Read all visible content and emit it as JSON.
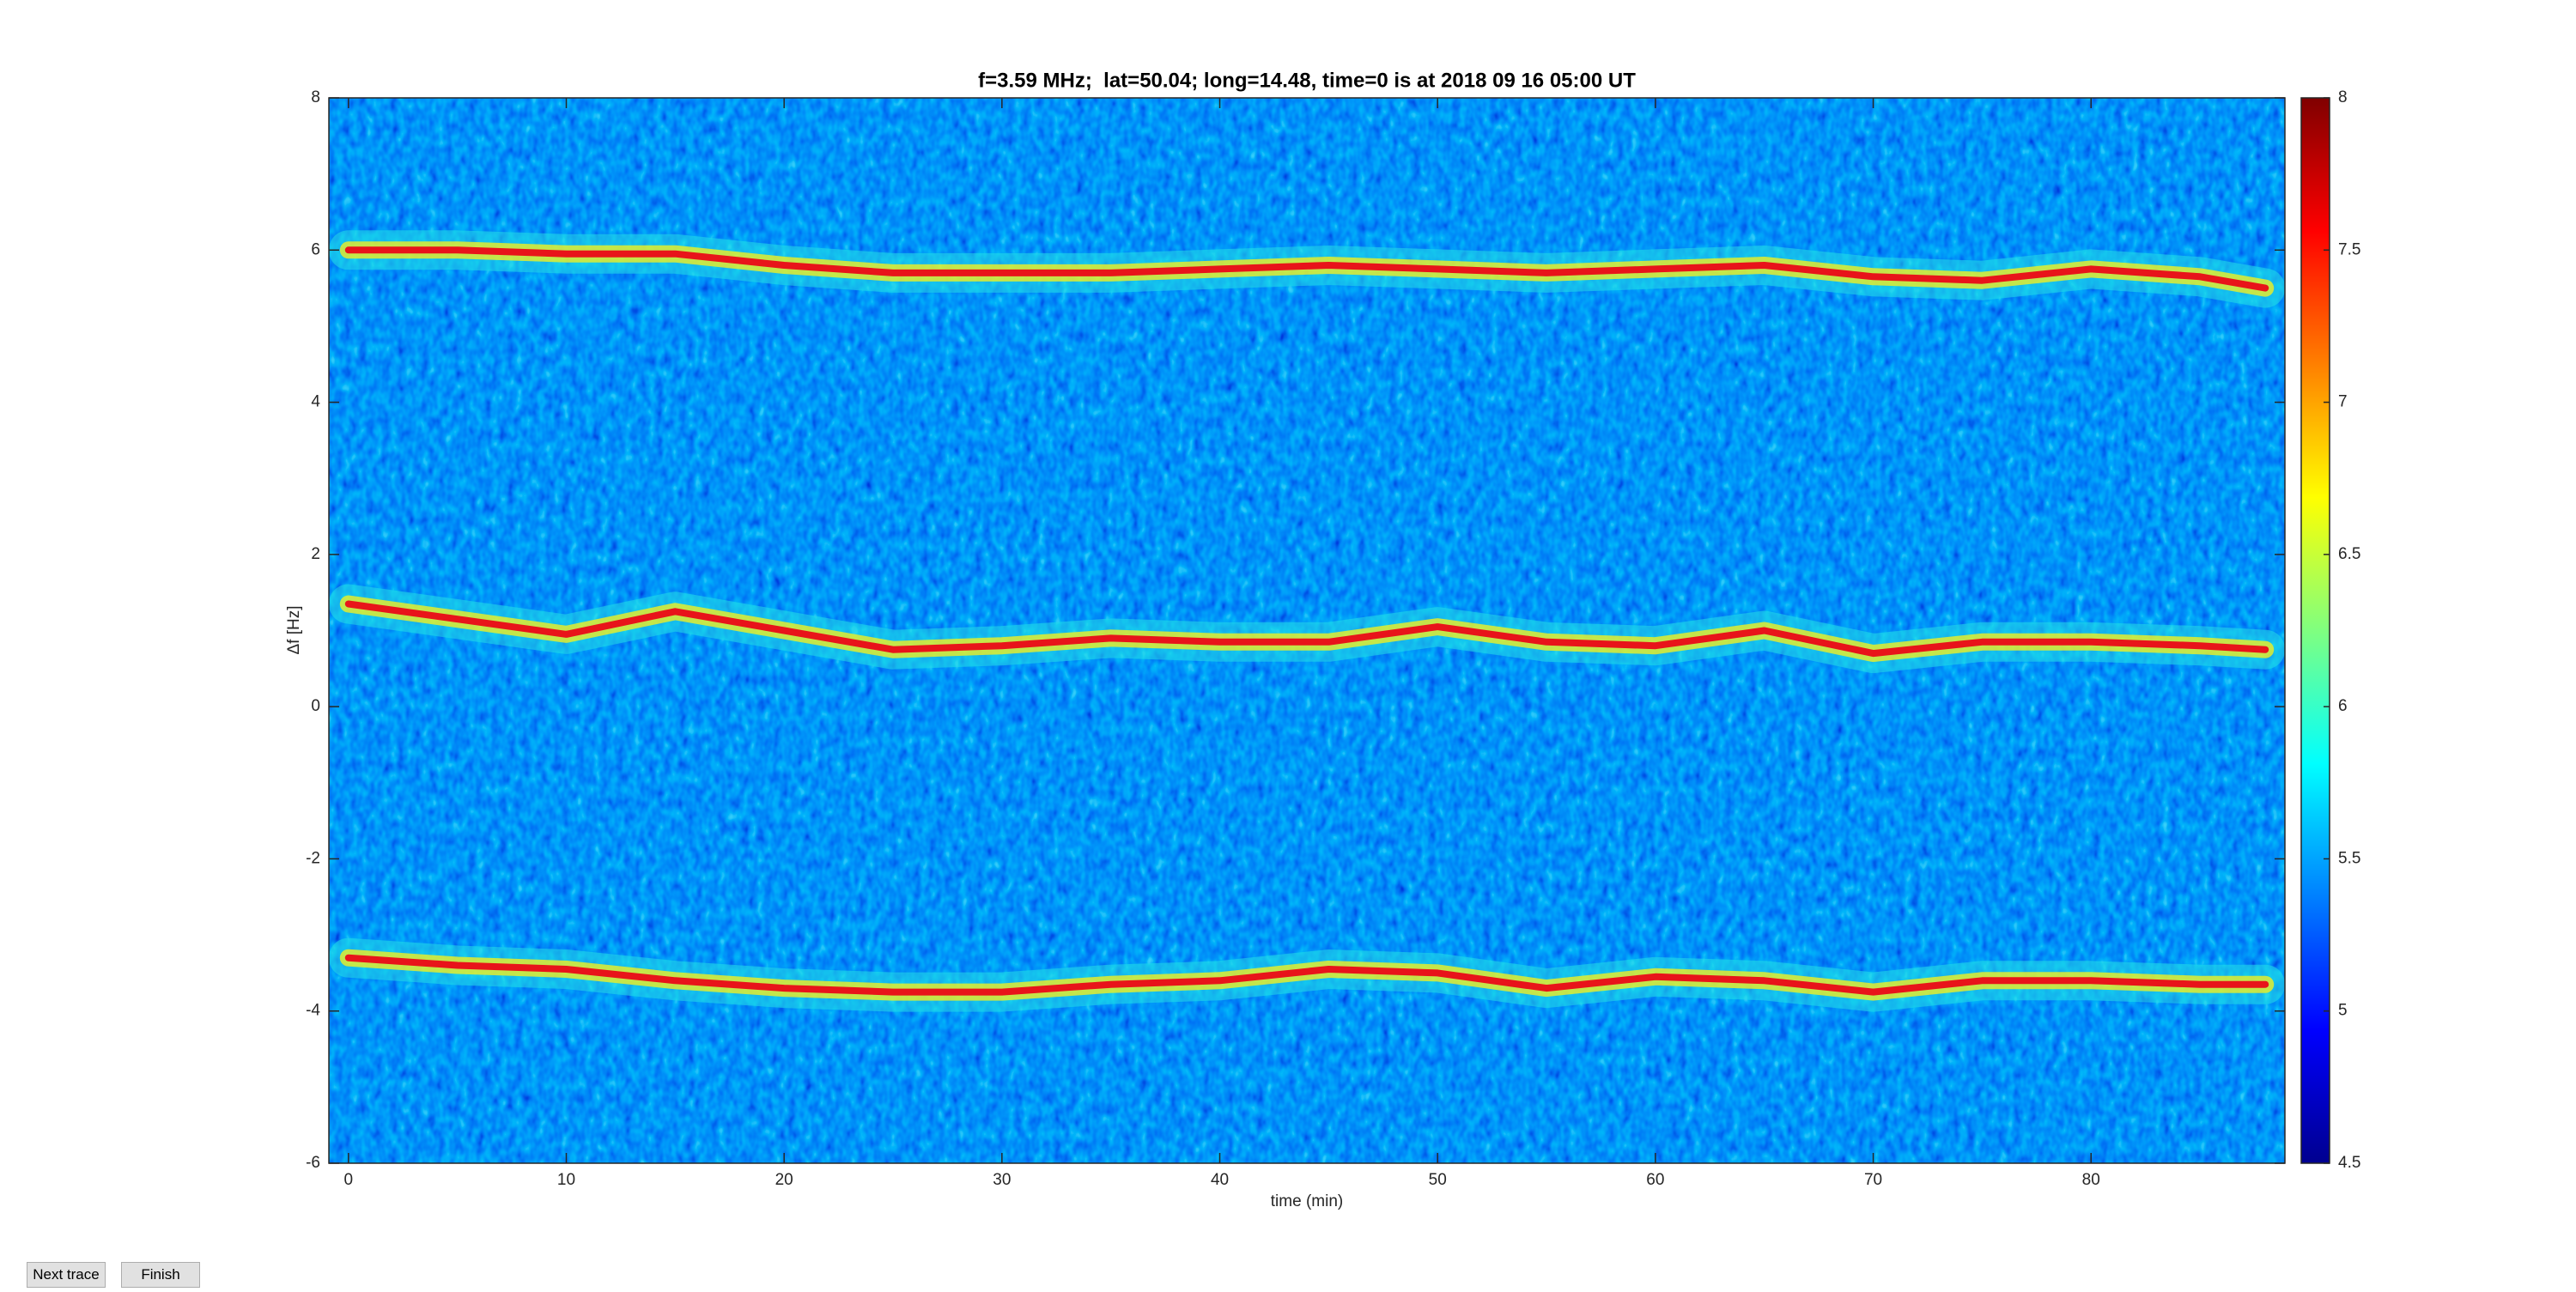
{
  "chart_data": {
    "type": "spectrogram",
    "title": "f=3.59 MHz;  lat=50.04; long=14.48, time=0 is at 2018 09 16 05:00 UT",
    "x_label": "time (min)",
    "y_label": "Δf [Hz]",
    "x": [
      0,
      5,
      10,
      15,
      20,
      25,
      30,
      35,
      40,
      45,
      50,
      55,
      60,
      65,
      70,
      75,
      80,
      85,
      88
    ],
    "series": [
      {
        "color": "#e8141a",
        "values": [
          6.0,
          6.0,
          5.95,
          5.95,
          5.8,
          5.7,
          5.7,
          5.7,
          5.75,
          5.8,
          5.75,
          5.7,
          5.75,
          5.8,
          5.65,
          5.6,
          5.75,
          5.65,
          5.5
        ]
      },
      {
        "color": "#e8141a",
        "values": [
          1.35,
          1.15,
          0.95,
          1.25,
          1.0,
          0.75,
          0.8,
          0.9,
          0.85,
          0.85,
          1.05,
          0.85,
          0.8,
          1.0,
          0.7,
          0.85,
          0.85,
          0.8,
          0.75
        ]
      },
      {
        "color": "#e8141a",
        "values": [
          -3.3,
          -3.4,
          -3.45,
          -3.6,
          -3.7,
          -3.75,
          -3.75,
          -3.65,
          -3.6,
          -3.45,
          -3.5,
          -3.7,
          -3.55,
          -3.6,
          -3.75,
          -3.6,
          -3.6,
          -3.65,
          -3.65
        ]
      }
    ],
    "xlim": [
      -0.9,
      88.9
    ],
    "xticks": [
      0,
      10,
      20,
      30,
      40,
      50,
      60,
      70,
      80
    ],
    "ylim": [
      -6,
      8
    ],
    "yticks": [
      -6,
      -4,
      -2,
      0,
      2,
      4,
      6,
      8
    ],
    "clim": [
      4.5,
      8
    ],
    "cticks": [
      4.5,
      5,
      5.5,
      6,
      6.5,
      7,
      7.5,
      8
    ]
  },
  "buttons": [
    "Next trace",
    "Finish"
  ]
}
